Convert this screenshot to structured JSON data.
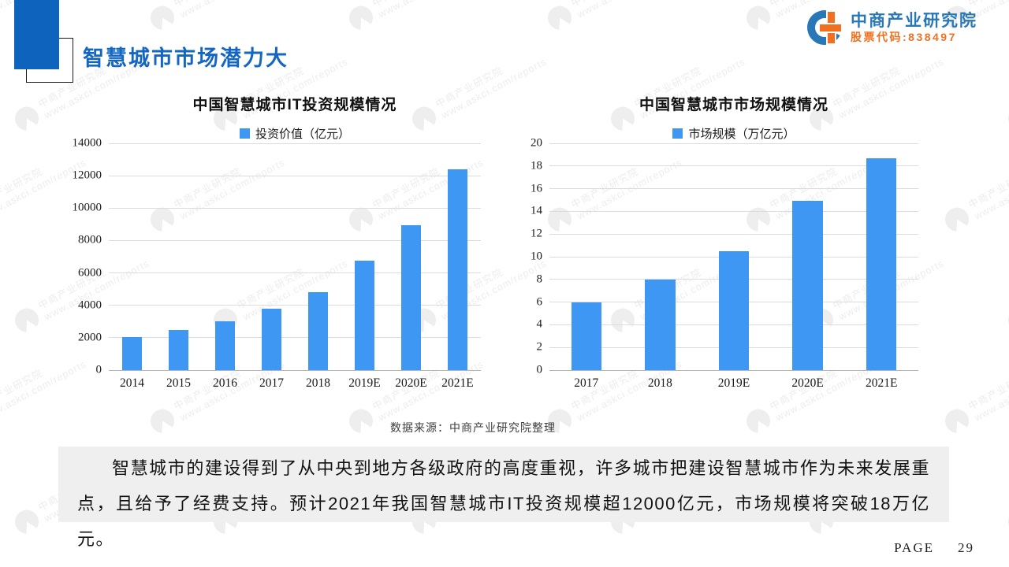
{
  "page": {
    "title": "智慧城市市场潜力大",
    "footer": {
      "page_label": "PAGE",
      "page_number": "29"
    }
  },
  "logo": {
    "name": "中商产业研究院",
    "stock_code": "股票代码:838497"
  },
  "watermark": {
    "line1": "中商产业研究院",
    "line2": "www.askci.com/reports"
  },
  "source_note": "数据来源：中商产业研究院整理",
  "paragraph": "智慧城市的建设得到了从中央到地方各级政府的高度重视，许多城市把建设智慧城市作为未来发展重点，且给予了经费支持。预计2021年我国智慧城市IT投资规模超12000亿元，市场规模将突破18万亿元。",
  "colors": {
    "accent_blue": "#0E63BC",
    "title_blue": "#1467C0",
    "bar_blue": "#3E97F2",
    "logo_blue": "#2878B8",
    "logo_orange": "#F07020",
    "paragraph_bg": "#EFEFEF"
  },
  "chart_data": [
    {
      "type": "bar",
      "title": "中国智慧城市IT投资规模情况",
      "legend": "投资价值（亿元）",
      "categories": [
        "2014",
        "2015",
        "2016",
        "2017",
        "2018",
        "2019E",
        "2020E",
        "2021E"
      ],
      "values": [
        2060,
        2480,
        3000,
        3780,
        4820,
        6750,
        8950,
        12400
      ],
      "ylim": [
        0,
        14000
      ],
      "ytick_step": 2000,
      "bar_color": "#3E97F2",
      "bar_width_ratio": 0.42,
      "grid": true,
      "legend_position": "top"
    },
    {
      "type": "bar",
      "title": "中国智慧城市市场规模情况",
      "legend": "市场规模（万亿元）",
      "categories": [
        "2017",
        "2018",
        "2019E",
        "2020E",
        "2021E"
      ],
      "values": [
        6.0,
        8.0,
        10.5,
        14.9,
        18.7
      ],
      "ylim": [
        0,
        20
      ],
      "ytick_step": 2,
      "bar_color": "#3E97F2",
      "bar_width_ratio": 0.41,
      "grid": true,
      "legend_position": "top"
    }
  ]
}
